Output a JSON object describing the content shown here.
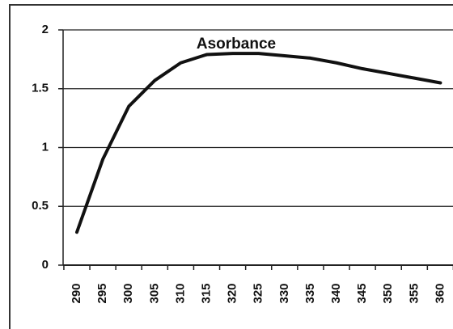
{
  "chart_data": {
    "type": "line",
    "title": "Asorbance",
    "categories": [
      290,
      295,
      300,
      305,
      310,
      315,
      320,
      325,
      330,
      335,
      340,
      345,
      350,
      355,
      360
    ],
    "series": [
      {
        "name": "Asorbance",
        "color": "#111111",
        "values": [
          0.28,
          0.9,
          1.35,
          1.57,
          1.72,
          1.79,
          1.8,
          1.8,
          1.78,
          1.76,
          1.72,
          1.67,
          1.63,
          1.59,
          1.55
        ]
      }
    ],
    "ylim": [
      0,
      2
    ],
    "yticks": [
      0,
      0.5,
      1,
      1.5,
      2
    ],
    "grid": true
  }
}
